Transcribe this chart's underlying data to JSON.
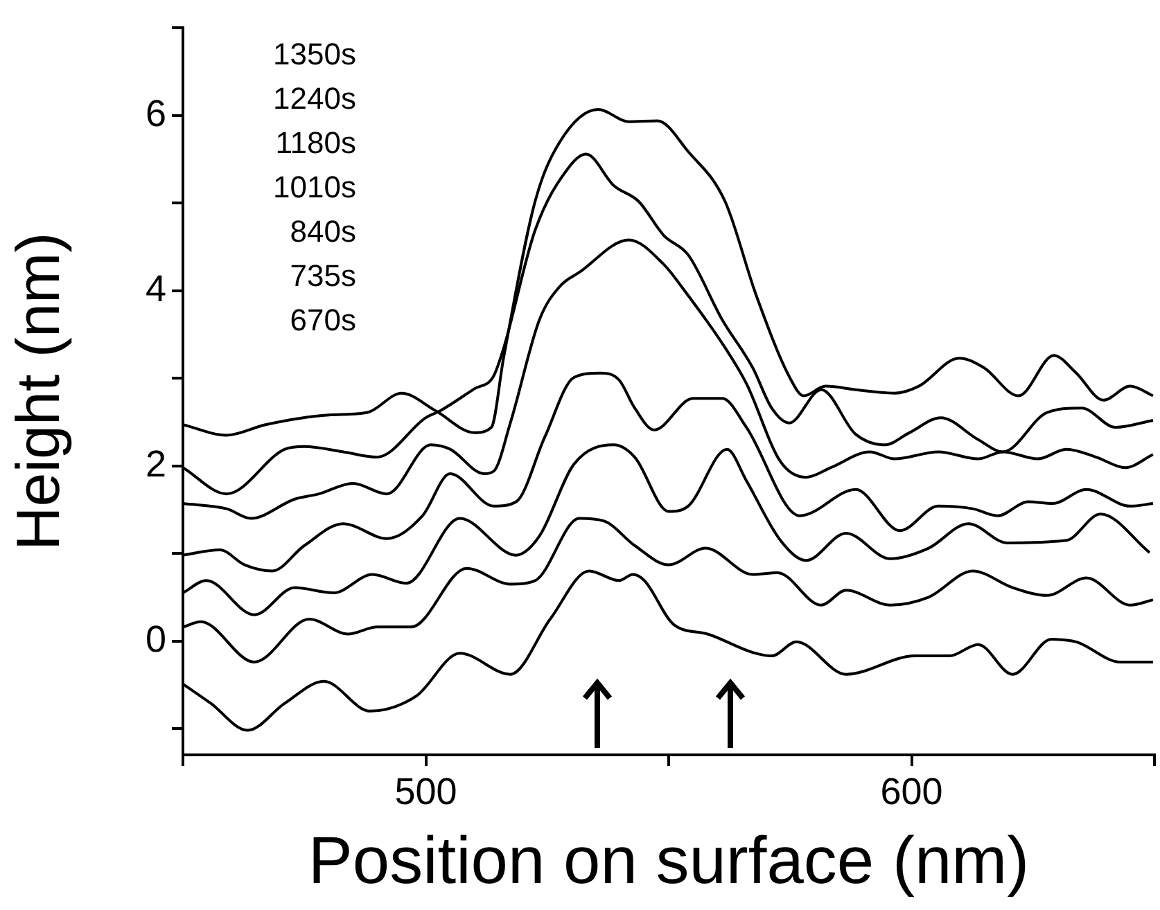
{
  "chart_data": {
    "type": "line",
    "xlabel": "Position on surface (nm)",
    "ylabel": "Height (nm)",
    "xlim": [
      450,
      650
    ],
    "ylim": [
      -1.3,
      7
    ],
    "xticks": [
      {
        "value": 450,
        "label": null
      },
      500,
      {
        "value": 550,
        "label": null
      },
      600,
      {
        "value": 650,
        "label": null
      }
    ],
    "yticks": [
      {
        "value": -1,
        "label": null
      },
      0,
      {
        "value": 1,
        "label": null
      },
      2,
      {
        "value": 3,
        "label": null
      },
      4,
      {
        "value": 5,
        "label": null
      },
      6,
      {
        "value": 7,
        "label": null
      }
    ],
    "grid": false,
    "marker": "none",
    "line_style": "solid",
    "annotations": [
      "1350s",
      "1240s",
      "1180s",
      "1010s",
      "840s",
      "735s",
      "670s"
    ],
    "series": [
      {
        "color": "#000000",
        "x": [
          450,
          459,
          467,
          480,
          488,
          495,
          502,
          510,
          513.5,
          516,
          522.5,
          527.6,
          535.5,
          541.8,
          547.7,
          554,
          561.6,
          568,
          575,
          577.8,
          582.3,
          588.5,
          596.5,
          601.5,
          609.8,
          614.9,
          622,
          629.3,
          633.9,
          639.5,
          645,
          649.7
        ],
        "values": [
          2.47,
          2.35,
          2.47,
          2.58,
          2.61,
          2.83,
          2.63,
          2.38,
          2.44,
          3.23,
          5.02,
          5.7,
          6.07,
          5.93,
          5.94,
          5.59,
          5.02,
          3.95,
          3.0,
          2.8,
          2.91,
          2.87,
          2.83,
          2.91,
          3.23,
          3.12,
          2.8,
          3.26,
          3.06,
          2.75,
          2.91,
          2.8
        ]
      },
      {
        "color": "#000000",
        "x": [
          450,
          459,
          471,
          475,
          483,
          490,
          500,
          503,
          510,
          513.9,
          516,
          522.5,
          529.6,
          533,
          538.7,
          543.8,
          549,
          554,
          561,
          567.3,
          571.2,
          574.8,
          581.4,
          588.5,
          594.5,
          599.6,
          606,
          613.7,
          618.8,
          627.9,
          635,
          642,
          649.7
        ],
        "values": [
          1.98,
          1.68,
          2.19,
          2.22,
          2.16,
          2.1,
          2.55,
          2.63,
          2.88,
          3.02,
          3.34,
          4.69,
          5.42,
          5.56,
          5.2,
          5.02,
          4.63,
          4.41,
          3.67,
          3.12,
          2.66,
          2.49,
          2.87,
          2.36,
          2.24,
          2.38,
          2.55,
          2.3,
          2.16,
          2.61,
          2.66,
          2.44,
          2.52
        ]
      },
      {
        "color": "#000000",
        "x": [
          450,
          459,
          464,
          473,
          478,
          485,
          492,
          501,
          505,
          512,
          514,
          517.4,
          523.4,
          527.6,
          531.6,
          541.8,
          549,
          553,
          561,
          566,
          573,
          578.3,
          583.4,
          591.4,
          596.5,
          605.5,
          613.7,
          618.8,
          626,
          631.9,
          638,
          644,
          649.7
        ],
        "values": [
          1.57,
          1.51,
          1.4,
          1.62,
          1.68,
          1.8,
          1.68,
          2.24,
          2.19,
          1.91,
          1.94,
          2.49,
          3.67,
          4.05,
          4.21,
          4.58,
          4.3,
          4.02,
          3.4,
          2.94,
          2.05,
          1.87,
          1.98,
          2.16,
          2.08,
          2.16,
          2.08,
          2.16,
          2.08,
          2.19,
          2.1,
          1.98,
          2.13
        ]
      },
      {
        "color": "#000000",
        "x": [
          450,
          457.6,
          462.7,
          468.4,
          475,
          483,
          492,
          499.3,
          505,
          514,
          518.6,
          524.5,
          530.5,
          536,
          539.8,
          543,
          547,
          555,
          561,
          566,
          577,
          588.5,
          597.6,
          605.5,
          612.6,
          617.7,
          624,
          629,
          636,
          645,
          649.7
        ],
        "values": [
          0.98,
          1.04,
          0.87,
          0.8,
          1.09,
          1.34,
          1.17,
          1.43,
          1.91,
          1.54,
          1.59,
          2.33,
          3.01,
          3.06,
          2.98,
          2.66,
          2.41,
          2.77,
          2.77,
          2.44,
          1.43,
          1.73,
          1.26,
          1.54,
          1.51,
          1.43,
          1.59,
          1.57,
          1.73,
          1.54,
          1.57
        ]
      },
      {
        "color": "#000000",
        "x": [
          450,
          454.8,
          464.7,
          473,
          481,
          489,
          496,
          507,
          518.6,
          523.4,
          530.5,
          538.7,
          543,
          550,
          554,
          562,
          566,
          573,
          578.3,
          586.5,
          595.6,
          603.5,
          611.7,
          619.7,
          631.9,
          638.9,
          649
        ],
        "values": [
          0.55,
          0.69,
          0.3,
          0.61,
          0.55,
          0.76,
          0.66,
          1.4,
          0.98,
          1.2,
          2.02,
          2.24,
          2.1,
          1.48,
          1.54,
          2.19,
          1.83,
          1.15,
          0.92,
          1.23,
          0.94,
          1.06,
          1.34,
          1.12,
          1.15,
          1.45,
          1.01
        ]
      },
      {
        "color": "#000000",
        "x": [
          450,
          453.7,
          464.7,
          476,
          484,
          490,
          497,
          508.4,
          517.4,
          522.5,
          531.6,
          536.7,
          543,
          550,
          557.6,
          567.3,
          572.4,
          581.4,
          586.5,
          595.6,
          603.5,
          612.6,
          620.8,
          627.9,
          636,
          645,
          649.7
        ],
        "values": [
          0.16,
          0.22,
          -0.24,
          0.25,
          0.08,
          0.16,
          0.16,
          0.83,
          0.65,
          0.69,
          1.4,
          1.37,
          1.09,
          0.87,
          1.06,
          0.76,
          0.78,
          0.41,
          0.58,
          0.41,
          0.5,
          0.8,
          0.61,
          0.52,
          0.72,
          0.41,
          0.47
        ]
      },
      {
        "color": "#000000",
        "x": [
          450,
          455.7,
          463.3,
          471,
          479,
          488.5,
          498,
          507,
          517.4,
          525.6,
          533.6,
          539.8,
          542.6,
          545,
          551,
          558,
          567.3,
          571.2,
          576.3,
          586.5,
          600.7,
          607.8,
          613.7,
          620.8,
          628.8,
          633.9,
          643,
          649.7
        ],
        "values": [
          -0.49,
          -0.71,
          -1.02,
          -0.71,
          -0.46,
          -0.8,
          -0.63,
          -0.14,
          -0.38,
          0.25,
          0.8,
          0.69,
          0.76,
          0.69,
          0.19,
          0.08,
          -0.13,
          -0.17,
          -0.01,
          -0.38,
          -0.17,
          -0.17,
          -0.04,
          -0.38,
          0.02,
          -0.01,
          -0.24,
          -0.24
        ]
      }
    ]
  }
}
